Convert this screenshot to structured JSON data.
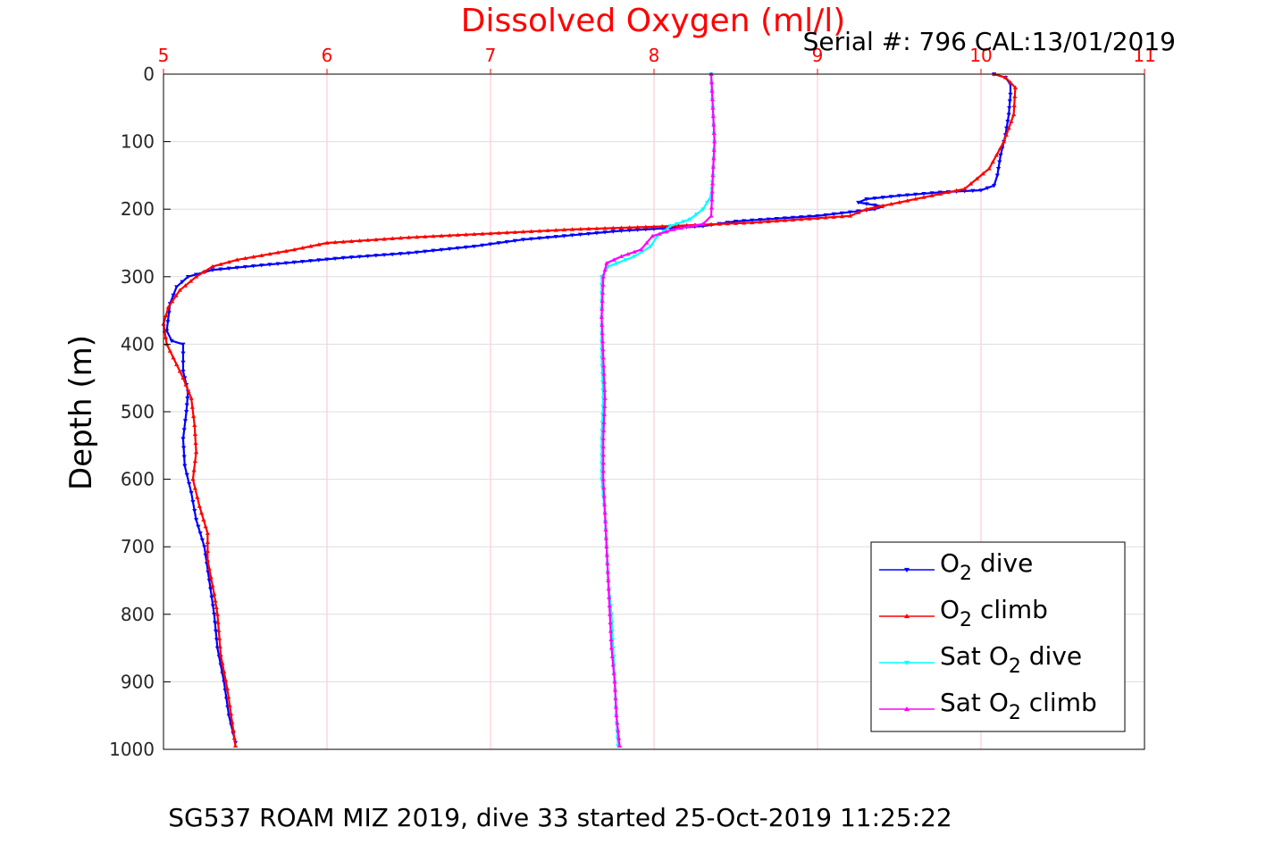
{
  "chart_data": {
    "type": "line",
    "title": "Dissolved Oxygen (ml/l)",
    "subtitle": "Serial #: 796  CAL:13/01/2019",
    "caption": "SG537 ROAM MIZ 2019, dive 33 started 25-Oct-2019 11:25:22",
    "xlabel": "",
    "ylabel": "Depth (m)",
    "xlim": [
      5,
      11
    ],
    "ylim": [
      0,
      1000
    ],
    "y_reversed": true,
    "x_axis_position": "top",
    "x_ticks": [
      "5",
      "6",
      "7",
      "8",
      "9",
      "10",
      "11"
    ],
    "y_ticks": [
      "0",
      "100",
      "200",
      "300",
      "400",
      "500",
      "600",
      "700",
      "800",
      "900",
      "1000"
    ],
    "grid": true,
    "legend_position": "bottom-right",
    "colors": {
      "title": "#ff0000",
      "x_axis": "#ff0000",
      "grid_x": "#ffc0cb",
      "grid_y": "#dddddd",
      "frame": "#000000"
    },
    "series": [
      {
        "name": "O2 dive",
        "legend_main": "O",
        "legend_sub": "2",
        "legend_after": " dive",
        "legend_before": "",
        "color": "#0000ff",
        "marker": "triangle-down",
        "points": [
          [
            10.08,
            0
          ],
          [
            10.15,
            5
          ],
          [
            10.18,
            15
          ],
          [
            10.18,
            30
          ],
          [
            10.17,
            60
          ],
          [
            10.15,
            90
          ],
          [
            10.12,
            120
          ],
          [
            10.1,
            150
          ],
          [
            10.08,
            165
          ],
          [
            10.0,
            172
          ],
          [
            9.75,
            175
          ],
          [
            9.5,
            180
          ],
          [
            9.3,
            185
          ],
          [
            9.25,
            190
          ],
          [
            9.4,
            196
          ],
          [
            9.35,
            200
          ],
          [
            9.0,
            210
          ],
          [
            8.5,
            218
          ],
          [
            8.3,
            225
          ],
          [
            7.8,
            232
          ],
          [
            7.2,
            245
          ],
          [
            6.9,
            255
          ],
          [
            6.5,
            265
          ],
          [
            6.1,
            272
          ],
          [
            5.6,
            283
          ],
          [
            5.3,
            290
          ],
          [
            5.15,
            300
          ],
          [
            5.08,
            315
          ],
          [
            5.04,
            340
          ],
          [
            5.02,
            380
          ],
          [
            5.05,
            395
          ],
          [
            5.12,
            400
          ],
          [
            5.12,
            440
          ],
          [
            5.15,
            470
          ],
          [
            5.14,
            500
          ],
          [
            5.12,
            540
          ],
          [
            5.13,
            580
          ],
          [
            5.17,
            620
          ],
          [
            5.2,
            660
          ],
          [
            5.25,
            700
          ],
          [
            5.28,
            750
          ],
          [
            5.31,
            800
          ],
          [
            5.33,
            850
          ],
          [
            5.37,
            900
          ],
          [
            5.4,
            950
          ],
          [
            5.44,
            990
          ]
        ]
      },
      {
        "name": "O2 climb",
        "legend_main": "O",
        "legend_sub": "2",
        "legend_after": " climb",
        "legend_before": "",
        "color": "#ff0000",
        "marker": "triangle-up",
        "points": [
          [
            5.44,
            995
          ],
          [
            5.42,
            960
          ],
          [
            5.39,
            910
          ],
          [
            5.35,
            860
          ],
          [
            5.33,
            800
          ],
          [
            5.31,
            770
          ],
          [
            5.27,
            720
          ],
          [
            5.27,
            680
          ],
          [
            5.22,
            640
          ],
          [
            5.18,
            600
          ],
          [
            5.2,
            560
          ],
          [
            5.19,
            520
          ],
          [
            5.17,
            480
          ],
          [
            5.12,
            450
          ],
          [
            5.06,
            420
          ],
          [
            5.02,
            400
          ],
          [
            5.0,
            370
          ],
          [
            5.03,
            345
          ],
          [
            5.1,
            320
          ],
          [
            5.2,
            300
          ],
          [
            5.3,
            285
          ],
          [
            5.45,
            275
          ],
          [
            5.8,
            260
          ],
          [
            6.0,
            250
          ],
          [
            6.5,
            242
          ],
          [
            7.0,
            236
          ],
          [
            7.5,
            230
          ],
          [
            8.0,
            226
          ],
          [
            8.6,
            220
          ],
          [
            9.2,
            210
          ],
          [
            9.3,
            200
          ],
          [
            9.5,
            190
          ],
          [
            9.9,
            170
          ],
          [
            10.05,
            140
          ],
          [
            10.14,
            100
          ],
          [
            10.2,
            60
          ],
          [
            10.21,
            20
          ],
          [
            10.15,
            5
          ],
          [
            10.08,
            0
          ]
        ]
      },
      {
        "name": "Sat O2 dive",
        "legend_main": "O",
        "legend_sub": "2",
        "legend_after": " dive",
        "legend_before": "Sat ",
        "color": "#00ffff",
        "marker": "triangle-down",
        "points": [
          [
            8.35,
            0
          ],
          [
            8.36,
            50
          ],
          [
            8.37,
            100
          ],
          [
            8.36,
            150
          ],
          [
            8.35,
            180
          ],
          [
            8.3,
            200
          ],
          [
            8.22,
            215
          ],
          [
            8.1,
            225
          ],
          [
            8.02,
            240
          ],
          [
            7.98,
            255
          ],
          [
            7.88,
            270
          ],
          [
            7.72,
            285
          ],
          [
            7.68,
            300
          ],
          [
            7.68,
            360
          ],
          [
            7.68,
            420
          ],
          [
            7.69,
            480
          ],
          [
            7.68,
            540
          ],
          [
            7.68,
            600
          ],
          [
            7.7,
            650
          ],
          [
            7.71,
            700
          ],
          [
            7.72,
            750
          ],
          [
            7.74,
            800
          ],
          [
            7.75,
            850
          ],
          [
            7.76,
            900
          ],
          [
            7.77,
            950
          ],
          [
            7.78,
            995
          ]
        ]
      },
      {
        "name": "Sat O2 climb",
        "legend_main": "O",
        "legend_sub": "2",
        "legend_after": " climb",
        "legend_before": "Sat ",
        "color": "#ff00ff",
        "marker": "triangle-up",
        "points": [
          [
            7.79,
            995
          ],
          [
            7.77,
            950
          ],
          [
            7.76,
            900
          ],
          [
            7.74,
            850
          ],
          [
            7.73,
            800
          ],
          [
            7.72,
            750
          ],
          [
            7.71,
            700
          ],
          [
            7.7,
            650
          ],
          [
            7.69,
            600
          ],
          [
            7.69,
            540
          ],
          [
            7.7,
            480
          ],
          [
            7.69,
            420
          ],
          [
            7.68,
            360
          ],
          [
            7.69,
            300
          ],
          [
            7.71,
            280
          ],
          [
            7.8,
            270
          ],
          [
            7.92,
            260
          ],
          [
            7.99,
            240
          ],
          [
            8.12,
            230
          ],
          [
            8.3,
            222
          ],
          [
            8.35,
            210
          ],
          [
            8.36,
            150
          ],
          [
            8.37,
            100
          ],
          [
            8.36,
            50
          ],
          [
            8.35,
            0
          ]
        ]
      }
    ]
  }
}
